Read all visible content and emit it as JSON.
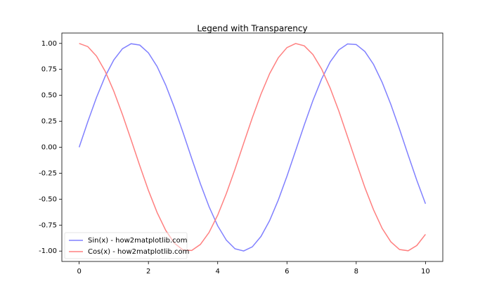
{
  "chart_data": {
    "type": "line",
    "title": "Legend with Transparency",
    "x": [
      0,
      0.25,
      0.5,
      0.75,
      1,
      1.25,
      1.5,
      1.75,
      2,
      2.25,
      2.5,
      2.75,
      3,
      3.25,
      3.5,
      3.75,
      4,
      4.25,
      4.5,
      4.75,
      5,
      5.25,
      5.5,
      5.75,
      6,
      6.25,
      6.5,
      6.75,
      7,
      7.25,
      7.5,
      7.75,
      8,
      8.25,
      8.5,
      8.75,
      9,
      9.25,
      9.5,
      9.75,
      10
    ],
    "series": [
      {
        "name": "Sin(x) - how2matplotlib.com",
        "color": "#8080ff",
        "values": [
          0,
          0.247,
          0.479,
          0.682,
          0.841,
          0.949,
          0.997,
          0.984,
          0.909,
          0.778,
          0.598,
          0.382,
          0.141,
          -0.108,
          -0.351,
          -0.572,
          -0.757,
          -0.895,
          -0.978,
          -0.999,
          -0.959,
          -0.859,
          -0.706,
          -0.508,
          -0.279,
          -0.033,
          0.215,
          0.45,
          0.657,
          0.823,
          0.938,
          0.995,
          0.989,
          0.922,
          0.798,
          0.624,
          0.412,
          0.174,
          -0.075,
          -0.319,
          -0.544
        ]
      },
      {
        "name": "Cos(x) - how2matplotlib.com",
        "color": "#ff8080",
        "values": [
          1,
          0.969,
          0.878,
          0.732,
          0.54,
          0.315,
          0.071,
          -0.178,
          -0.416,
          -0.628,
          -0.801,
          -0.924,
          -0.99,
          -0.994,
          -0.936,
          -0.821,
          -0.654,
          -0.446,
          -0.211,
          0.038,
          0.284,
          0.512,
          0.709,
          0.862,
          0.96,
          0.999,
          0.977,
          0.893,
          0.754,
          0.568,
          0.347,
          0.101,
          -0.146,
          -0.388,
          -0.602,
          -0.782,
          -0.911,
          -0.985,
          -0.997,
          -0.946,
          -0.839
        ]
      }
    ],
    "xlim": [
      -0.5,
      10.5
    ],
    "xticks": [
      0,
      2,
      4,
      6,
      8,
      10
    ],
    "ylim": [
      -1.1,
      1.1
    ],
    "yticks": [
      {
        "value": -1,
        "label": "-1.00"
      },
      {
        "value": -0.75,
        "label": "-0.75"
      },
      {
        "value": -0.5,
        "label": "-0.50"
      },
      {
        "value": -0.25,
        "label": "-0.25"
      },
      {
        "value": 0,
        "label": "0.00"
      },
      {
        "value": 0.25,
        "label": "0.25"
      },
      {
        "value": 0.5,
        "label": "0.50"
      },
      {
        "value": 0.75,
        "label": "0.75"
      },
      {
        "value": 1,
        "label": "1.00"
      }
    ],
    "grid": false,
    "legend_loc": "lower left",
    "legend_alpha": 0.5
  }
}
